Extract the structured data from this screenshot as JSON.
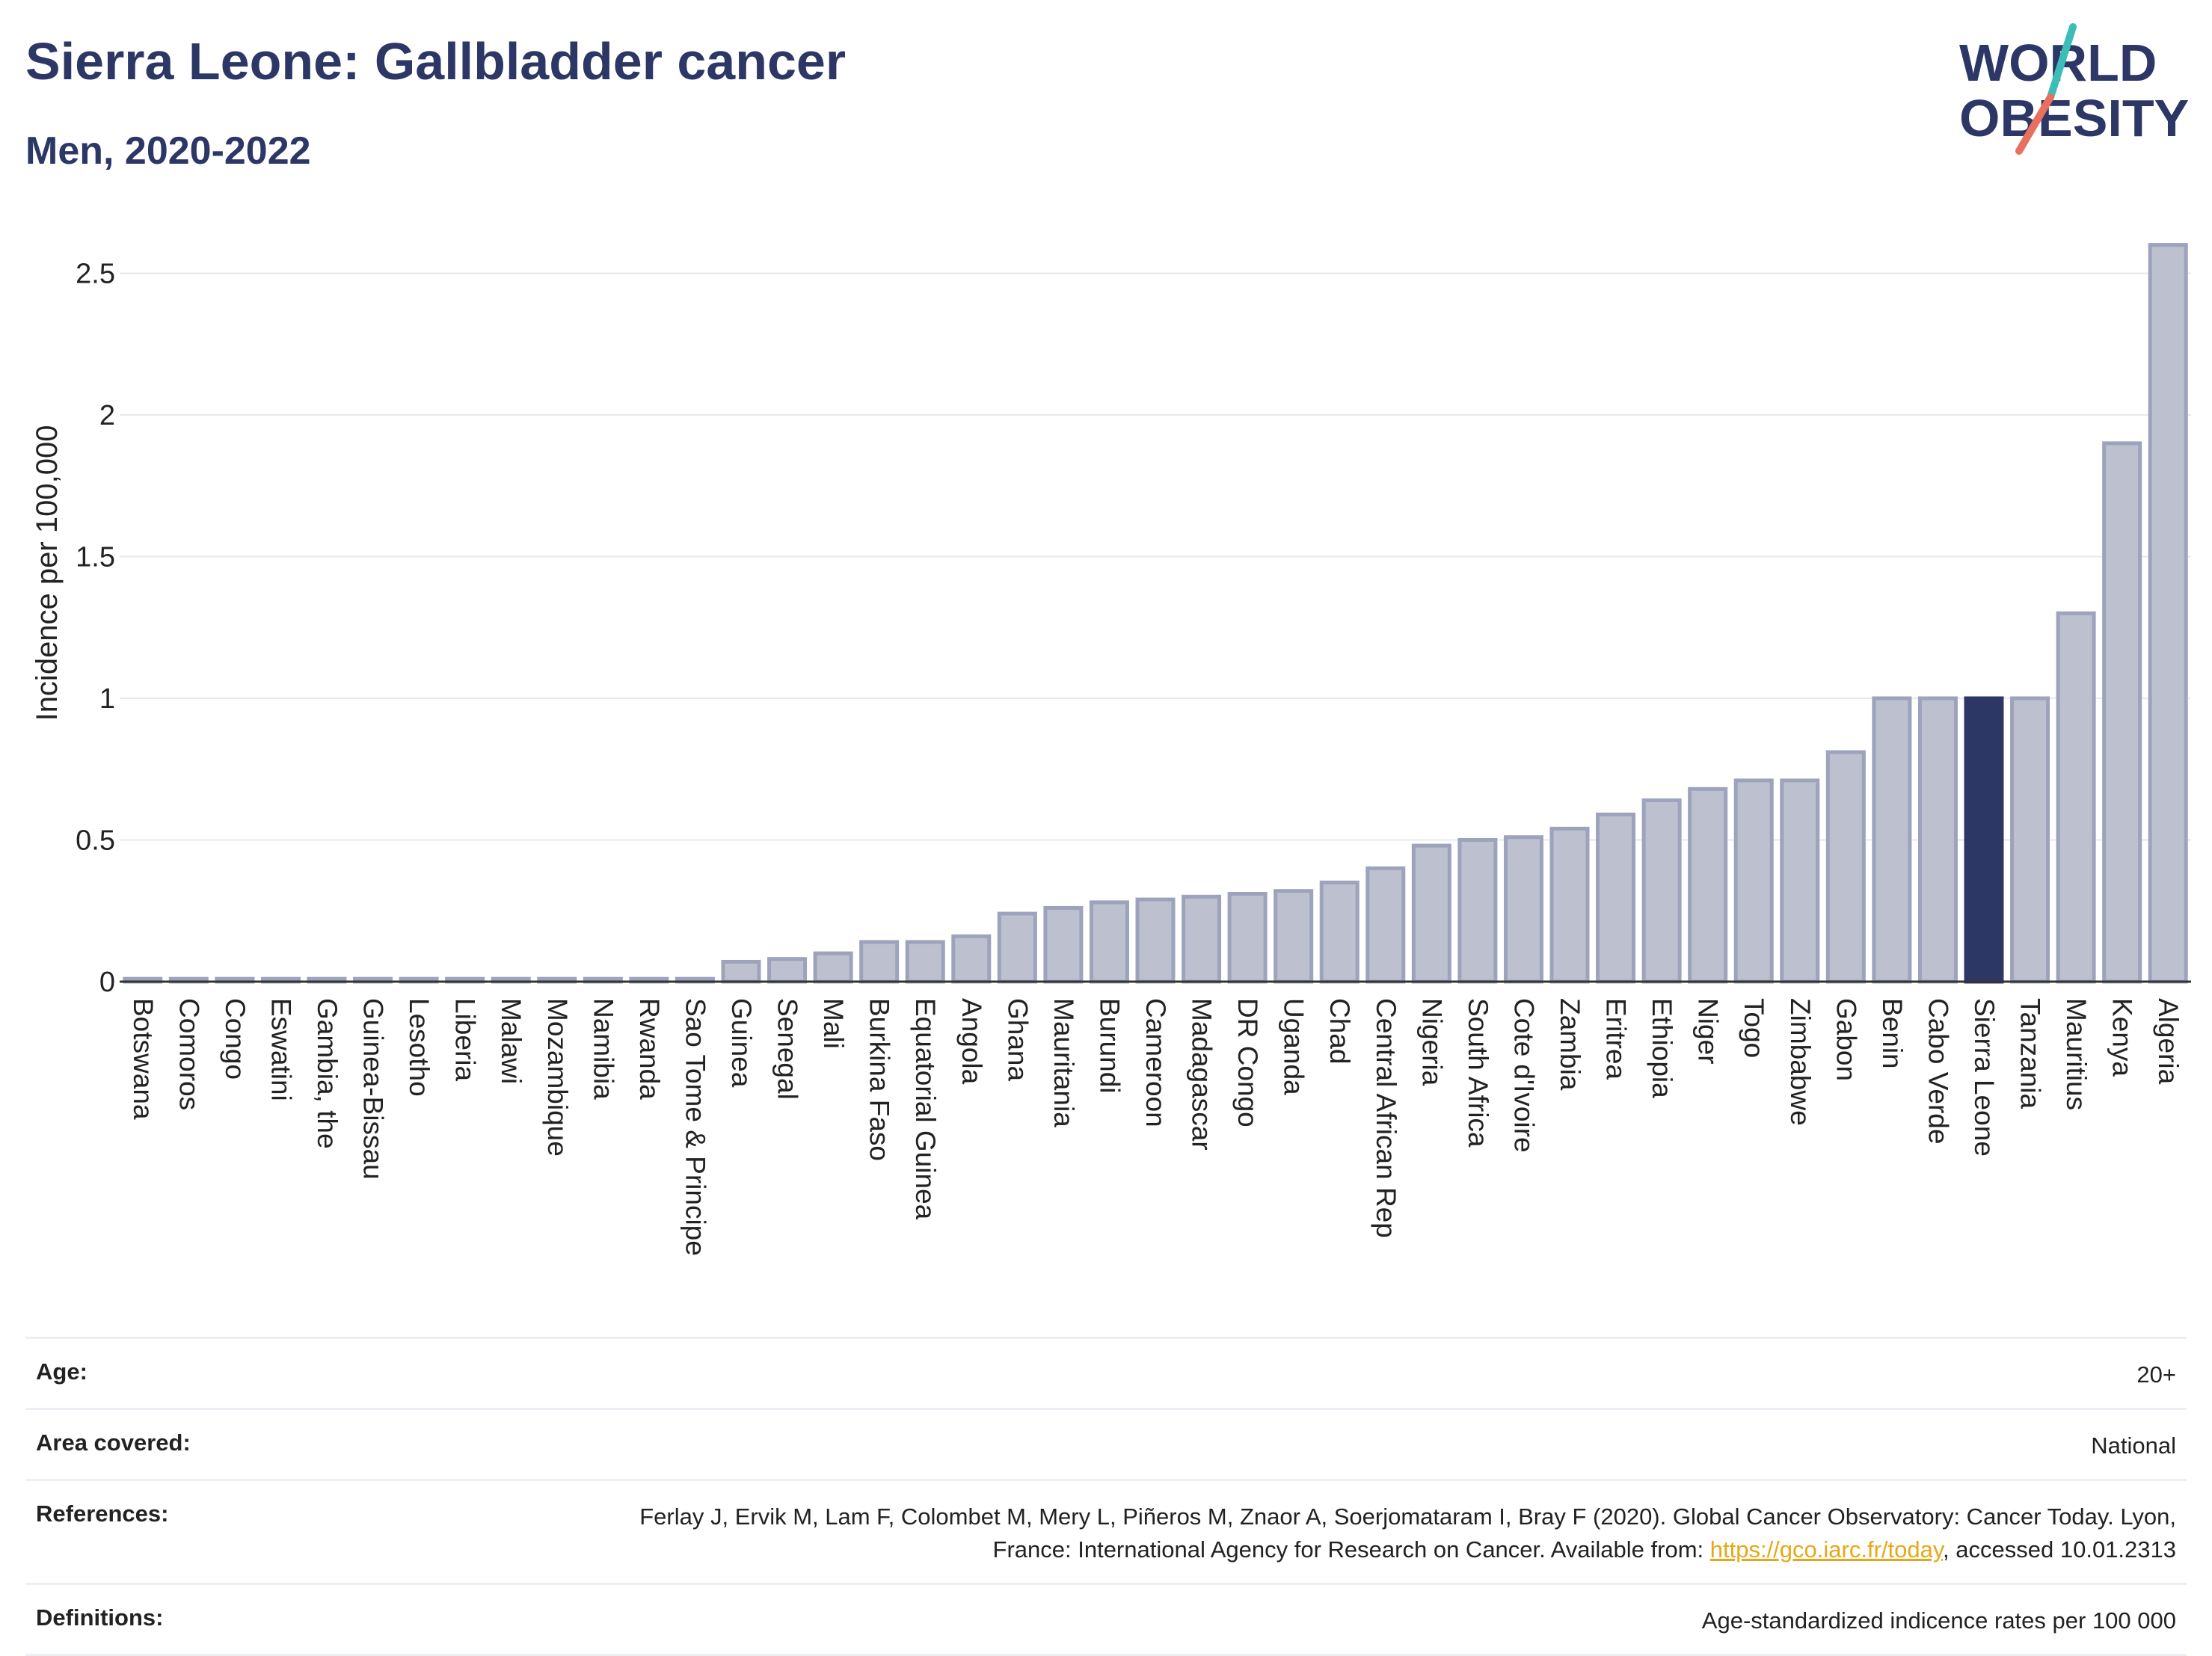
{
  "title": "Sierra Leone: Gallbladder cancer",
  "subtitle": "Men, 2020-2022",
  "logo": {
    "line1": "WORLD",
    "line2": "OBESITY"
  },
  "chart_data": {
    "type": "bar",
    "ylabel": "Incidence per 100,000",
    "ylim": [
      0,
      2.62
    ],
    "yticks": [
      0,
      0.5,
      1,
      1.5,
      2,
      2.5
    ],
    "ytick_labels": [
      "0",
      "0.5",
      "1",
      "1.5",
      "2",
      "2.5"
    ],
    "grid": true,
    "highlight": "Sierra Leone",
    "colors": {
      "bar": "#bcc0cf",
      "bar_border": "#9da3ba",
      "highlight": "#2c3766"
    },
    "categories": [
      "Botswana",
      "Comoros",
      "Congo",
      "Eswatini",
      "Gambia, the",
      "Guinea-Bissau",
      "Lesotho",
      "Liberia",
      "Malawi",
      "Mozambique",
      "Namibia",
      "Rwanda",
      "Sao Tome & Principe",
      "Guinea",
      "Senegal",
      "Mali",
      "Burkina Faso",
      "Equatorial Guinea",
      "Angola",
      "Ghana",
      "Mauritania",
      "Burundi",
      "Cameroon",
      "Madagascar",
      "DR Congo",
      "Uganda",
      "Chad",
      "Central African Rep",
      "Nigeria",
      "South Africa",
      "Cote d'Ivoire",
      "Zambia",
      "Eritrea",
      "Ethiopia",
      "Niger",
      "Togo",
      "Zimbabwe",
      "Gabon",
      "Benin",
      "Cabo Verde",
      "Sierra Leone",
      "Tanzania",
      "Mauritius",
      "Kenya",
      "Algeria"
    ],
    "values": [
      0.01,
      0.01,
      0.01,
      0.01,
      0.01,
      0.01,
      0.01,
      0.01,
      0.01,
      0.01,
      0.01,
      0.01,
      0.01,
      0.07,
      0.08,
      0.1,
      0.14,
      0.14,
      0.16,
      0.24,
      0.26,
      0.28,
      0.29,
      0.3,
      0.31,
      0.32,
      0.35,
      0.4,
      0.48,
      0.5,
      0.51,
      0.54,
      0.59,
      0.64,
      0.68,
      0.71,
      0.71,
      0.81,
      1.0,
      1.0,
      1.0,
      1.0,
      1.3,
      1.9,
      2.6
    ]
  },
  "info": {
    "age": {
      "label": "Age:",
      "value": "20+"
    },
    "area": {
      "label": "Area covered:",
      "value": "National"
    },
    "references": {
      "label": "References:",
      "text_before": "Ferlay J, Ervik M, Lam F, Colombet M, Mery L, Piñeros M, Znaor A, Soerjomataram I, Bray F (2020). Global Cancer Observatory: Cancer Today. Lyon, France: International Agency for Research on Cancer. Available from: ",
      "link": "https://gco.iarc.fr/today",
      "text_after": ", accessed 10.01.2313"
    },
    "definitions": {
      "label": "Definitions:",
      "value": "Age-standardized indicence rates per 100 000"
    }
  }
}
